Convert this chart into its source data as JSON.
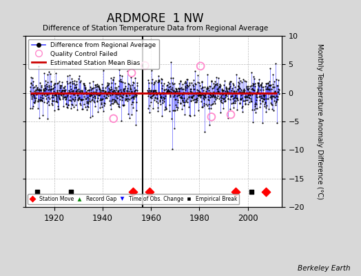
{
  "title": "ARDMORE  1 NW",
  "subtitle": "Difference of Station Temperature Data from Regional Average",
  "ylabel": "Monthly Temperature Anomaly Difference (°C)",
  "xlim": [
    1908,
    2014
  ],
  "ylim": [
    -20,
    10
  ],
  "yticks": [
    -20,
    -15,
    -10,
    -5,
    0,
    5,
    10
  ],
  "xticks": [
    1920,
    1940,
    1960,
    1980,
    2000
  ],
  "background_color": "#d8d8d8",
  "plot_bg_color": "#ffffff",
  "line_color": "#4444ff",
  "dot_color": "#000000",
  "bias_color": "#cc0000",
  "bias_value": -0.1,
  "record_gap_start": 1954.5,
  "record_gap_end": 1958.5,
  "station_moves": [
    1952.5,
    1959.5,
    1995.0,
    2007.5
  ],
  "empirical_breaks": [
    1913.0,
    1927.0,
    2001.5
  ],
  "obs_changes": [],
  "qc_fail_years": [
    1944.5,
    1952.0,
    1957.5,
    1980.5,
    1985.0,
    1993.0
  ],
  "qc_fail_values": [
    -4.5,
    3.5,
    4.8,
    4.7,
    -4.2,
    -3.8
  ],
  "seed": 17,
  "start_year": 1910,
  "end_year": 2012
}
